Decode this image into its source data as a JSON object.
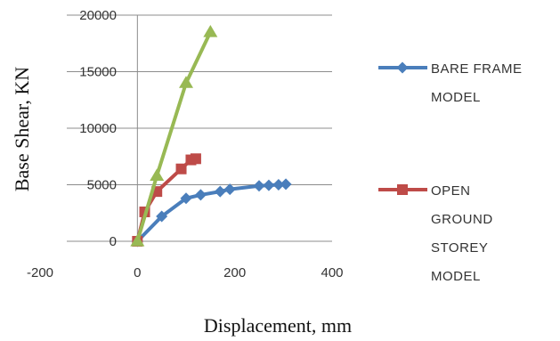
{
  "chart_data": {
    "type": "line",
    "xlabel": "Displacement, mm",
    "ylabel": "Base Shear, KN",
    "xlim": [
      -200,
      400
    ],
    "ylim": [
      0,
      20000
    ],
    "x_ticks": [
      "-200",
      "0",
      "200",
      "400"
    ],
    "y_ticks": [
      "0",
      "5000",
      "10000",
      "15000",
      "20000"
    ],
    "grid": "horizontal",
    "legend_position": "right",
    "series": [
      {
        "name_lines": [
          "BARE FRAME",
          "MODEL"
        ],
        "color": "#4a7ebb",
        "marker": "diamond",
        "x": [
          0,
          50,
          100,
          130,
          170,
          190,
          250,
          270,
          290,
          305
        ],
        "y": [
          0,
          2200,
          3800,
          4100,
          4400,
          4600,
          4900,
          4950,
          5000,
          5050
        ]
      },
      {
        "name_lines": [
          "OPEN",
          "GROUND",
          "STOREY",
          "MODEL"
        ],
        "color": "#be4b48",
        "marker": "square",
        "x": [
          0,
          15,
          40,
          90,
          110,
          120
        ],
        "y": [
          0,
          2600,
          4400,
          6400,
          7200,
          7300
        ]
      },
      {
        "name_lines": [],
        "color": "#98b954",
        "marker": "triangle",
        "x": [
          0,
          40,
          100,
          150
        ],
        "y": [
          0,
          5800,
          14000,
          18500
        ]
      }
    ]
  }
}
